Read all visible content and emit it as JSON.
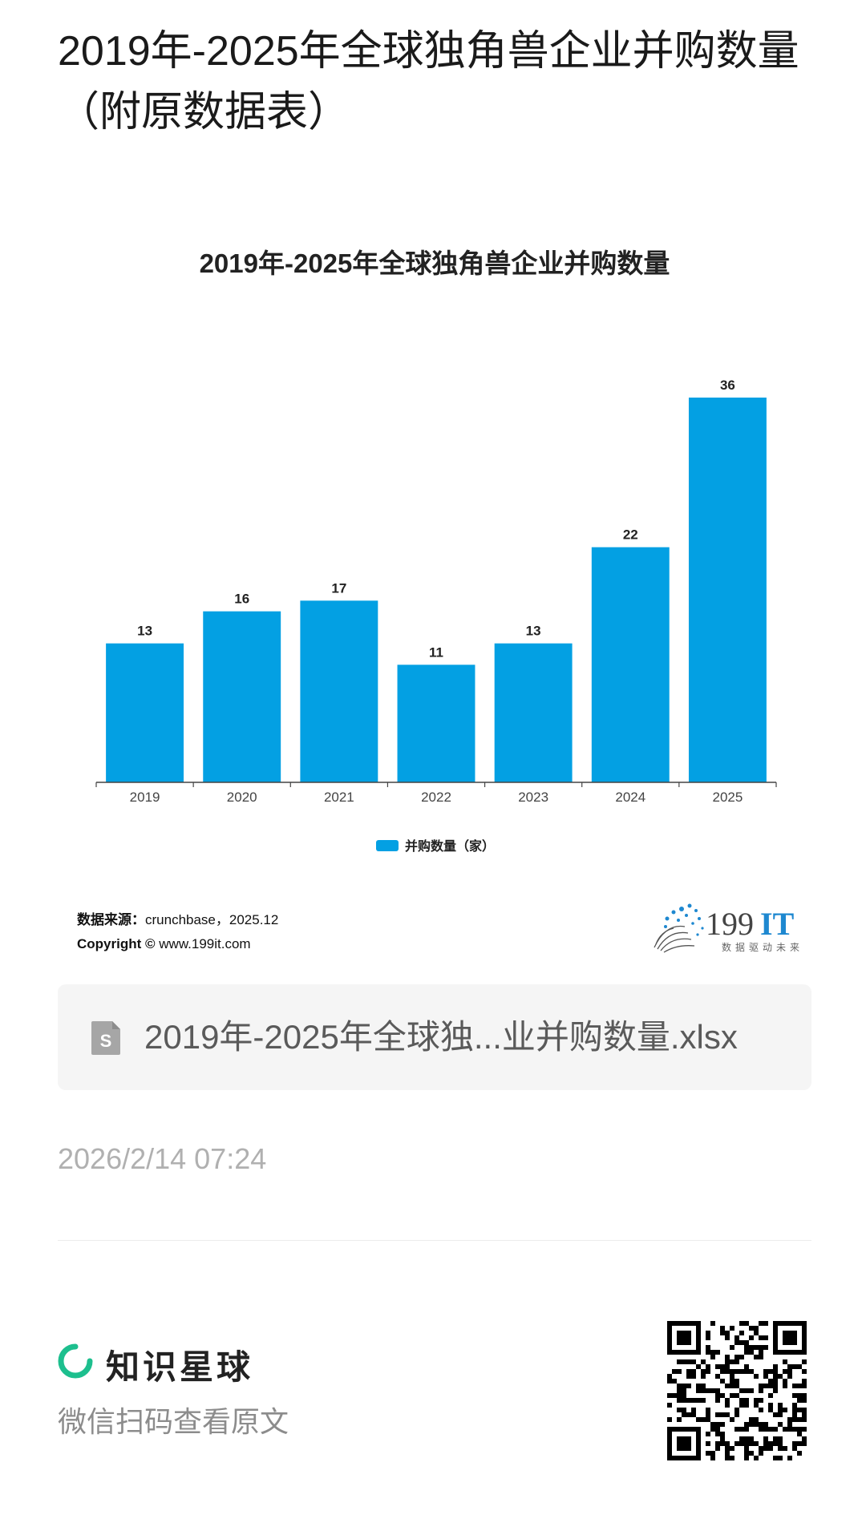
{
  "page": {
    "title": "2019年-2025年全球独角兽企业并购数量（附原数据表）"
  },
  "chart_data": {
    "type": "bar",
    "title": "2019年-2025年全球独角兽企业并购数量",
    "categories": [
      "2019",
      "2020",
      "2021",
      "2022",
      "2023",
      "2024",
      "2025"
    ],
    "series": [
      {
        "name": "并购数量（家）",
        "values": [
          13,
          16,
          17,
          11,
          13,
          22,
          36
        ],
        "color": "#03a0e3"
      }
    ],
    "ylim": [
      0,
      36
    ],
    "grid": false,
    "legend": "bottom-center"
  },
  "source": {
    "label": "数据来源：",
    "value": "crunchbase，2025.12",
    "copyright_label": "Copyright ©",
    "copyright_value": "www.199it.com"
  },
  "brand": {
    "logo_text": "199IT",
    "tagline": "数据驱动未来",
    "logo_icon": "dandelion-logo-icon"
  },
  "file": {
    "name": "2019年-2025年全球独...业并购数量.xlsx",
    "icon": "spreadsheet-file-icon"
  },
  "timestamp": "2026/2/14 07:24",
  "footer": {
    "app_name": "知识星球",
    "scan_hint": "微信扫码查看原文",
    "logo_icon": "zsxq-logo-icon",
    "qr_icon": "qr-code-icon"
  },
  "colors": {
    "bar": "#03a0e3",
    "logo_green": "#1dbf8e",
    "brand_blue": "#1e88d0"
  }
}
